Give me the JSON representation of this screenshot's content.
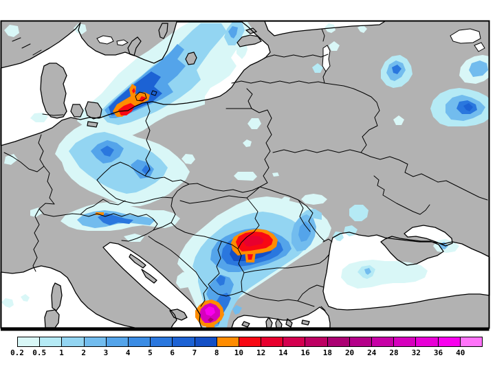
{
  "legend": {
    "tick_labels": [
      "0.2",
      "0.5",
      "1",
      "2",
      "3",
      "4",
      "5",
      "6",
      "7",
      "8",
      "10",
      "12",
      "14",
      "16",
      "18",
      "20",
      "24",
      "28",
      "32",
      "36",
      "40"
    ],
    "segment_colors": [
      "#d9f7f7",
      "#b5eaf5",
      "#93d5f2",
      "#72bcee",
      "#54a4ea",
      "#3b8ce4",
      "#2a77de",
      "#1c62d4",
      "#1450c6",
      "#ff8c00",
      "#f80813",
      "#e8002e",
      "#d4004f",
      "#bd0062",
      "#ab0072",
      "#b40089",
      "#c700a6",
      "#d600bd",
      "#e800d6",
      "#f900ee",
      "#ff73f9"
    ],
    "border_color": "#000000",
    "label_color": "#000000"
  },
  "map": {
    "land_color": "#b2b2b2",
    "sea_color": "#ffffff",
    "outline_color": "#000000",
    "frame_color": "#000000",
    "background_color": "#ffffff"
  }
}
